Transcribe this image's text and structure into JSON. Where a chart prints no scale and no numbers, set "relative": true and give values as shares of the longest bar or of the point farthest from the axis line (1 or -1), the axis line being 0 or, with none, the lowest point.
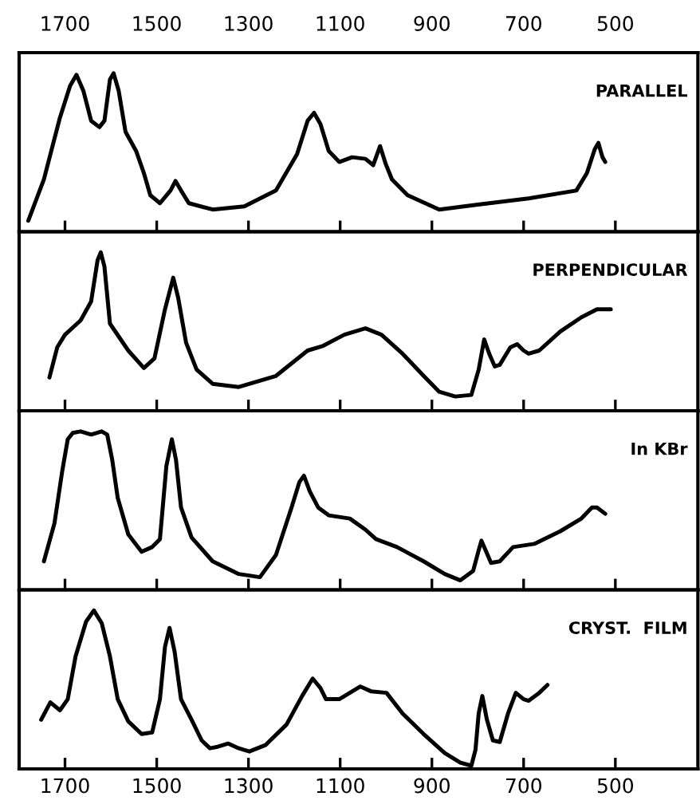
{
  "chart_data": [
    {
      "type": "line",
      "relative": true,
      "annotations": [
        "PARALLEL"
      ],
      "xlim": [
        1800,
        320
      ],
      "xticks": [
        1700,
        1500,
        1300,
        1100,
        900,
        700,
        500
      ],
      "series": [
        {
          "color": "#000000",
          "x": [
            1780,
            1746,
            1711,
            1689,
            1675,
            1660,
            1643,
            1625,
            1614,
            1602,
            1594,
            1583,
            1568,
            1545,
            1528,
            1514,
            1493,
            1470,
            1459,
            1447,
            1430,
            1378,
            1309,
            1240,
            1194,
            1171,
            1157,
            1143,
            1125,
            1102,
            1074,
            1045,
            1028,
            1013,
            1001,
            987,
            953,
            884,
            803,
            689,
            585,
            562,
            545,
            537,
            528,
            522
          ],
          "values": [
            0.07,
            0.33,
            0.72,
            0.92,
            0.99,
            0.89,
            0.7,
            0.66,
            0.7,
            0.96,
            1.0,
            0.89,
            0.63,
            0.51,
            0.37,
            0.23,
            0.18,
            0.26,
            0.32,
            0.26,
            0.18,
            0.14,
            0.16,
            0.26,
            0.49,
            0.7,
            0.75,
            0.68,
            0.51,
            0.44,
            0.47,
            0.46,
            0.42,
            0.54,
            0.43,
            0.33,
            0.23,
            0.14,
            0.17,
            0.21,
            0.26,
            0.37,
            0.52,
            0.56,
            0.47,
            0.44
          ]
        }
      ]
    },
    {
      "type": "line",
      "relative": true,
      "annotations": [
        "PERPENDICULAR"
      ],
      "xlim": [
        1800,
        320
      ],
      "xticks": [
        1700,
        1500,
        1300,
        1100,
        900,
        700,
        500
      ],
      "tick_labels": false,
      "series": [
        {
          "color": "#000000",
          "x": [
            1734,
            1717,
            1700,
            1666,
            1643,
            1629,
            1622,
            1614,
            1602,
            1562,
            1528,
            1505,
            1482,
            1464,
            1453,
            1436,
            1413,
            1378,
            1321,
            1240,
            1171,
            1137,
            1091,
            1045,
            1010,
            964,
            918,
            884,
            849,
            814,
            798,
            786,
            775,
            763,
            752,
            729,
            714,
            700,
            689,
            666,
            620,
            574,
            540,
            510
          ],
          "values": [
            0.21,
            0.4,
            0.48,
            0.57,
            0.69,
            0.95,
            1.0,
            0.91,
            0.55,
            0.38,
            0.27,
            0.33,
            0.64,
            0.84,
            0.71,
            0.43,
            0.26,
            0.17,
            0.15,
            0.22,
            0.38,
            0.41,
            0.48,
            0.52,
            0.48,
            0.36,
            0.22,
            0.12,
            0.09,
            0.1,
            0.26,
            0.45,
            0.36,
            0.28,
            0.29,
            0.4,
            0.42,
            0.38,
            0.36,
            0.38,
            0.5,
            0.59,
            0.64,
            0.64
          ]
        }
      ]
    },
    {
      "type": "line",
      "relative": true,
      "annotations": [
        "In KBr"
      ],
      "xlim": [
        1800,
        320
      ],
      "xticks": [
        1700,
        1500,
        1300,
        1100,
        900,
        700,
        500
      ],
      "tick_labels": false,
      "series": [
        {
          "color": "#000000",
          "x": [
            1746,
            1723,
            1706,
            1694,
            1683,
            1666,
            1643,
            1620,
            1608,
            1597,
            1585,
            1562,
            1533,
            1510,
            1493,
            1479,
            1467,
            1458,
            1447,
            1424,
            1378,
            1321,
            1275,
            1240,
            1206,
            1189,
            1179,
            1166,
            1148,
            1125,
            1079,
            1045,
            1022,
            976,
            918,
            872,
            838,
            810,
            798,
            792,
            783,
            771,
            752,
            723,
            700,
            677,
            620,
            574,
            551,
            540,
            522
          ],
          "values": [
            0.18,
            0.42,
            0.75,
            0.95,
            0.99,
            1.0,
            0.98,
            1.0,
            0.98,
            0.82,
            0.58,
            0.35,
            0.24,
            0.27,
            0.32,
            0.78,
            0.95,
            0.82,
            0.52,
            0.33,
            0.18,
            0.1,
            0.08,
            0.22,
            0.52,
            0.68,
            0.72,
            0.62,
            0.52,
            0.47,
            0.45,
            0.38,
            0.32,
            0.27,
            0.18,
            0.1,
            0.06,
            0.12,
            0.25,
            0.31,
            0.25,
            0.17,
            0.18,
            0.27,
            0.28,
            0.29,
            0.37,
            0.45,
            0.52,
            0.52,
            0.48
          ]
        }
      ]
    },
    {
      "type": "line",
      "relative": true,
      "annotations": [
        "CRYST.  FILM"
      ],
      "xlim": [
        1800,
        320
      ],
      "xticks": [
        1700,
        1500,
        1300,
        1100,
        900,
        700,
        500
      ],
      "series": [
        {
          "color": "#000000",
          "x": [
            1752,
            1732,
            1711,
            1694,
            1677,
            1654,
            1637,
            1620,
            1602,
            1585,
            1562,
            1533,
            1510,
            1493,
            1482,
            1472,
            1461,
            1447,
            1424,
            1402,
            1384,
            1367,
            1344,
            1321,
            1298,
            1263,
            1217,
            1183,
            1160,
            1143,
            1131,
            1102,
            1056,
            1033,
            999,
            964,
            918,
            872,
            838,
            814,
            805,
            798,
            790,
            780,
            767,
            752,
            734,
            717,
            700,
            689,
            666,
            648
          ],
          "values": [
            0.31,
            0.42,
            0.37,
            0.44,
            0.71,
            0.93,
            1.0,
            0.92,
            0.71,
            0.44,
            0.3,
            0.22,
            0.23,
            0.44,
            0.77,
            0.89,
            0.74,
            0.44,
            0.31,
            0.18,
            0.13,
            0.14,
            0.16,
            0.13,
            0.11,
            0.15,
            0.28,
            0.46,
            0.57,
            0.51,
            0.44,
            0.44,
            0.52,
            0.49,
            0.48,
            0.35,
            0.22,
            0.1,
            0.04,
            0.02,
            0.12,
            0.35,
            0.46,
            0.31,
            0.18,
            0.17,
            0.35,
            0.48,
            0.44,
            0.43,
            0.48,
            0.53
          ]
        }
      ]
    }
  ]
}
